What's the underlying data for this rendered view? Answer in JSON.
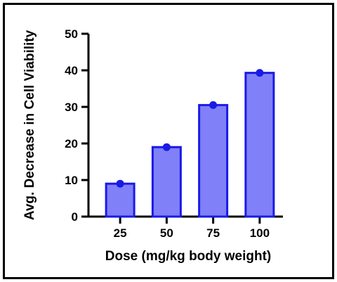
{
  "chart_data": {
    "type": "bar",
    "title": "",
    "xlabel": "Dose (mg/kg body weight)",
    "ylabel": "Avg. Decrease in Cell Viability",
    "categories": [
      "25",
      "50",
      "75",
      "100"
    ],
    "values": [
      9,
      19,
      30.5,
      39.3
    ],
    "ylim": [
      0,
      50
    ],
    "yticks": [
      "0",
      "10",
      "20",
      "30",
      "40",
      "50"
    ],
    "grid": false,
    "legend": "none",
    "colors": {
      "bar_fill": "#8080f8",
      "bar_stroke": "#1a1ae6",
      "point": "#1a1ae6",
      "axis": "#000000"
    }
  }
}
